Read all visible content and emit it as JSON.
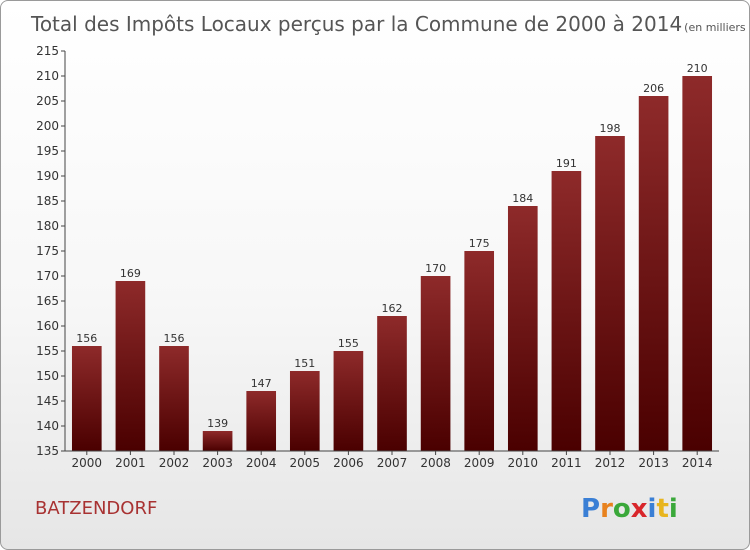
{
  "header": {
    "title": "Total des Impôts Locaux perçus par la Commune de 2000 à 2014",
    "unit": "(en milliers d'€)"
  },
  "footer": {
    "commune": "BATZENDORF",
    "logo_letters": [
      "P",
      "r",
      "o",
      "x",
      "i",
      "t",
      "i"
    ],
    "logo_colors": [
      "#3a7fd5",
      "#e8821e",
      "#3aa83a",
      "#d8262b",
      "#3a7fd5",
      "#e8b51e",
      "#3aa83a"
    ]
  },
  "chart_data": {
    "type": "bar",
    "title": "Total des Impôts Locaux perçus par la Commune de 2000 à 2014",
    "categories": [
      "2000",
      "2001",
      "2002",
      "2003",
      "2004",
      "2005",
      "2006",
      "2007",
      "2008",
      "2009",
      "2010",
      "2011",
      "2012",
      "2013",
      "2014"
    ],
    "values": [
      156,
      169,
      156,
      139,
      147,
      151,
      155,
      162,
      170,
      175,
      184,
      191,
      198,
      206,
      210
    ],
    "ylim": [
      135,
      215
    ],
    "yticks": [
      135,
      140,
      145,
      150,
      155,
      160,
      165,
      170,
      175,
      180,
      185,
      190,
      195,
      200,
      205,
      210,
      215
    ],
    "grid": false,
    "bar_color_top": "#8e2a2a",
    "bar_color_bottom": "#4a0000"
  }
}
